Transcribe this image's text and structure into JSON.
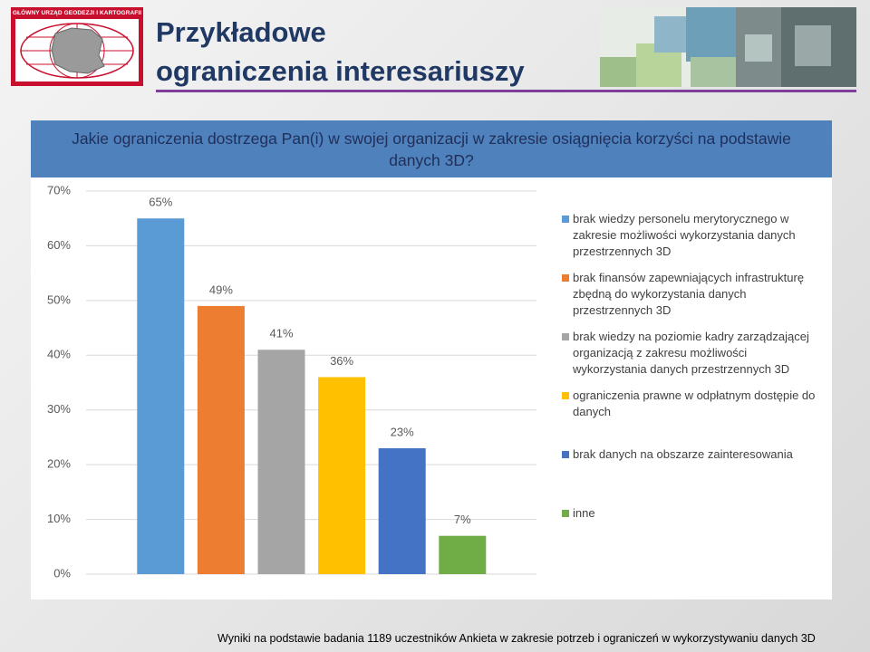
{
  "header": {
    "logo_text": "GŁÓWNY URZĄD GEODEZJI I KARTOGRAFII",
    "title_lines": [
      "Przykładowe",
      "ograniczenia interesariuszy"
    ]
  },
  "chart_data": {
    "type": "bar",
    "title": "Jakie ograniczenia dostrzega Pan(i) w swojej organizacji w zakresie osiągnięcia korzyści na podstawie danych 3D?",
    "categories": [
      "brak wiedzy personelu merytorycznego w zakresie możliwości wykorzystania danych przestrzennych 3D",
      "brak finansów zapewniających infrastrukturę zbędną do wykorzystania danych przestrzennych 3D",
      "brak wiedzy na poziomie kadry zarządzającej organizacją z zakresu możliwości wykorzystania  danych przestrzennych 3D",
      "ograniczenia prawne w odpłatnym dostępie do danych",
      "brak danych na obszarze zainteresowania",
      "inne"
    ],
    "values": [
      65,
      49,
      41,
      36,
      23,
      7
    ],
    "value_labels": [
      "65%",
      "49%",
      "41%",
      "36%",
      "23%",
      "7%"
    ],
    "colors": [
      "#5b9bd5",
      "#ed7d31",
      "#a5a5a5",
      "#ffc000",
      "#4472c4",
      "#70ad47"
    ],
    "ylim": [
      0,
      70
    ],
    "yticks": [
      {
        "value": 0,
        "label": "0%"
      },
      {
        "value": 10,
        "label": "10%"
      },
      {
        "value": 20,
        "label": "20%"
      },
      {
        "value": 30,
        "label": "30%"
      },
      {
        "value": 40,
        "label": "40%"
      },
      {
        "value": 50,
        "label": "50%"
      },
      {
        "value": 60,
        "label": "60%"
      },
      {
        "value": 70,
        "label": "70%"
      }
    ],
    "grid": true
  },
  "footer": "Wyniki na podstawie badania 1189 uczestników Ankieta w zakresie potrzeb  i ograniczeń w wykorzystywaniu danych 3D"
}
